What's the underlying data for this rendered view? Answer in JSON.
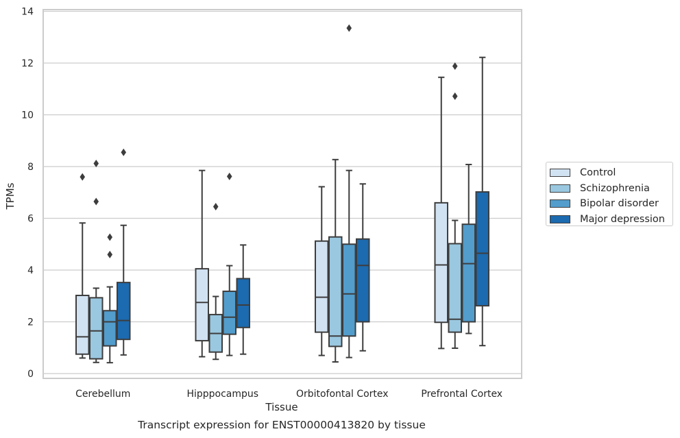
{
  "caption": "Transcript expression for ENST00000413820 by tissue",
  "chart_data": {
    "type": "box",
    "xlabel": "Tissue",
    "ylabel": "TPMs",
    "ylim": [
      -0.2,
      14.05
    ],
    "yticks": [
      0,
      2,
      4,
      6,
      8,
      10,
      12,
      14
    ],
    "grid": true,
    "legend_position": "right",
    "categories": [
      "Cerebellum",
      "Hipppocampus",
      "Orbitofontal Cortex",
      "Prefrontal Cortex"
    ],
    "series": [
      {
        "name": "Control",
        "color": "#d1e2f2",
        "boxes": [
          {
            "whisker_low": 0.6,
            "q1": 0.75,
            "median": 1.42,
            "q3": 3.02,
            "whisker_high": 5.82,
            "outliers": [
              7.6
            ]
          },
          {
            "whisker_low": 0.65,
            "q1": 1.27,
            "median": 2.75,
            "q3": 4.05,
            "whisker_high": 7.85,
            "outliers": []
          },
          {
            "whisker_low": 0.7,
            "q1": 1.6,
            "median": 2.95,
            "q3": 5.12,
            "whisker_high": 7.22,
            "outliers": []
          },
          {
            "whisker_low": 0.97,
            "q1": 1.98,
            "median": 4.2,
            "q3": 6.6,
            "whisker_high": 11.45,
            "outliers": []
          }
        ]
      },
      {
        "name": "Schizophrenia",
        "color": "#9ac8e0",
        "boxes": [
          {
            "whisker_low": 0.43,
            "q1": 0.57,
            "median": 1.65,
            "q3": 2.93,
            "whisker_high": 3.3,
            "outliers": [
              6.65,
              8.12
            ]
          },
          {
            "whisker_low": 0.55,
            "q1": 0.83,
            "median": 1.55,
            "q3": 2.28,
            "whisker_high": 2.98,
            "outliers": [
              6.45
            ]
          },
          {
            "whisker_low": 0.45,
            "q1": 1.05,
            "median": 1.45,
            "q3": 5.28,
            "whisker_high": 8.27,
            "outliers": []
          },
          {
            "whisker_low": 0.98,
            "q1": 1.6,
            "median": 2.1,
            "q3": 5.02,
            "whisker_high": 5.92,
            "outliers": [
              10.72,
              11.88
            ]
          }
        ]
      },
      {
        "name": "Bipolar disorder",
        "color": "#529dcc",
        "boxes": [
          {
            "whisker_low": 0.42,
            "q1": 1.07,
            "median": 2.0,
            "q3": 2.43,
            "whisker_high": 3.35,
            "outliers": [
              4.6,
              5.27
            ]
          },
          {
            "whisker_low": 0.7,
            "q1": 1.52,
            "median": 2.18,
            "q3": 3.18,
            "whisker_high": 4.17,
            "outliers": [
              7.62
            ]
          },
          {
            "whisker_low": 0.62,
            "q1": 1.45,
            "median": 3.08,
            "q3": 5.0,
            "whisker_high": 7.85,
            "outliers": [
              13.35
            ]
          },
          {
            "whisker_low": 1.55,
            "q1": 2.0,
            "median": 4.25,
            "q3": 5.77,
            "whisker_high": 8.08,
            "outliers": []
          }
        ]
      },
      {
        "name": "Major depression",
        "color": "#1c6aaf",
        "boxes": [
          {
            "whisker_low": 0.72,
            "q1": 1.32,
            "median": 2.05,
            "q3": 3.52,
            "whisker_high": 5.73,
            "outliers": [
              8.55
            ]
          },
          {
            "whisker_low": 0.75,
            "q1": 1.78,
            "median": 2.65,
            "q3": 3.67,
            "whisker_high": 4.97,
            "outliers": []
          },
          {
            "whisker_low": 0.88,
            "q1": 2.0,
            "median": 4.18,
            "q3": 5.2,
            "whisker_high": 7.33,
            "outliers": []
          },
          {
            "whisker_low": 1.08,
            "q1": 2.62,
            "median": 4.65,
            "q3": 7.02,
            "whisker_high": 12.22,
            "outliers": []
          }
        ]
      }
    ]
  }
}
